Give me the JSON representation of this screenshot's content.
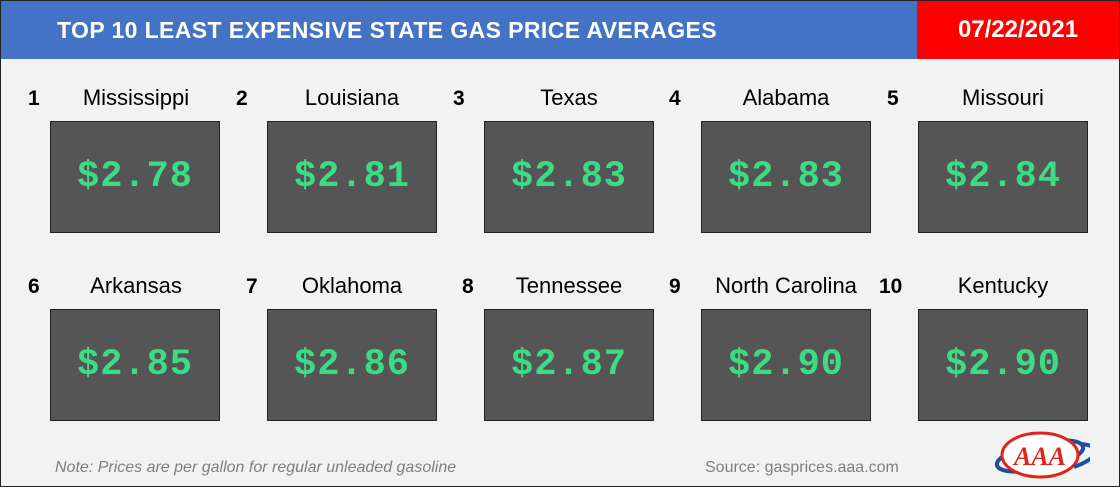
{
  "title": "TOP 10 LEAST EXPENSIVE STATE GAS PRICE AVERAGES",
  "date": "07/22/2021",
  "items": [
    {
      "rank": "1",
      "state": "Mississippi",
      "price": "$2.78"
    },
    {
      "rank": "2",
      "state": "Louisiana",
      "price": "$2.81"
    },
    {
      "rank": "3",
      "state": "Texas",
      "price": "$2.83"
    },
    {
      "rank": "4",
      "state": "Alabama",
      "price": "$2.83"
    },
    {
      "rank": "5",
      "state": "Missouri",
      "price": "$2.84"
    },
    {
      "rank": "6",
      "state": "Arkansas",
      "price": "$2.85"
    },
    {
      "rank": "7",
      "state": "Oklahoma",
      "price": "$2.86"
    },
    {
      "rank": "8",
      "state": "Tennessee",
      "price": "$2.87"
    },
    {
      "rank": "9",
      "state": "North Carolina",
      "price": "$2.90"
    },
    {
      "rank": "10",
      "state": "Kentucky",
      "price": "$2.90"
    }
  ],
  "note": "Note: Prices are per gallon for regular unleaded gasoline",
  "source": "Source: gasprices.aaa.com",
  "logo_text": "AAA",
  "colors": {
    "title_bg": "#4472c4",
    "date_bg": "#ff0000",
    "price_box": "#555555",
    "price_text": "#3ddc84",
    "logo_red": "#e2231a",
    "logo_blue": "#1f4e9c"
  }
}
